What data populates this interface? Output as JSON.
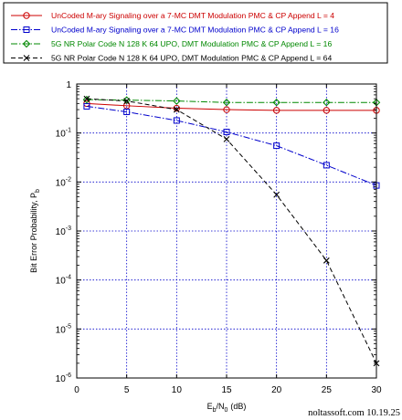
{
  "chart_data": {
    "type": "line",
    "xlabel": "E",
    "xlabel_sub1": "b",
    "xlabel_mid": "/N",
    "xlabel_sub2": "0",
    "xlabel_unit": "(dB)",
    "ylabel": "Bit Error Probability, P",
    "ylabel_sub": "b",
    "xlim": [
      0,
      30
    ],
    "ylim": [
      1e-06,
      1
    ],
    "yscale": "log",
    "grid": true,
    "legend_position": "top",
    "x_ticks": [
      "0",
      "5",
      "10",
      "15",
      "20",
      "25",
      "30"
    ],
    "y_ticks": [
      {
        "base": "1",
        "exp": ""
      },
      {
        "base": "10",
        "exp": "-1"
      },
      {
        "base": "10",
        "exp": "-2"
      },
      {
        "base": "10",
        "exp": "-3"
      },
      {
        "base": "10",
        "exp": "-4"
      },
      {
        "base": "10",
        "exp": "-5"
      },
      {
        "base": "10",
        "exp": "-6"
      }
    ],
    "series": [
      {
        "name": "UnCoded M-ary Signaling over a 7-MC DMT Modulation PMC & CP Append L = 4",
        "color": "#cc0000",
        "marker": "circle",
        "dash": "solid",
        "x": [
          1,
          5,
          10,
          15,
          20,
          25,
          30
        ],
        "y": [
          0.4,
          0.36,
          0.32,
          0.3,
          0.29,
          0.29,
          0.29
        ]
      },
      {
        "name": "UnCoded M-ary Signaling over a 7-MC DMT Modulation PMC & CP Append L = 16",
        "color": "#0000cc",
        "marker": "square",
        "dash": "dashdot",
        "x": [
          1,
          5,
          10,
          15,
          20,
          25,
          30
        ],
        "y": [
          0.35,
          0.27,
          0.18,
          0.105,
          0.055,
          0.022,
          0.0085
        ]
      },
      {
        "name": "5G NR Polar Code N 128 K 64 UPO, DMT Modulation PMC & CP Append L = 16",
        "color": "#008800",
        "marker": "diamond",
        "dash": "dashdot",
        "x": [
          1,
          5,
          10,
          15,
          20,
          25,
          30
        ],
        "y": [
          0.48,
          0.47,
          0.45,
          0.42,
          0.42,
          0.42,
          0.42
        ]
      },
      {
        "name": "5G NR Polar Code N 128 K 64 UPO, DMT Modulation PMC & CP Append L = 64",
        "color": "#000000",
        "marker": "x",
        "dash": "dashed",
        "x": [
          1,
          5,
          10,
          15,
          20,
          25,
          30
        ],
        "y": [
          0.5,
          0.45,
          0.3,
          0.075,
          0.0055,
          0.00025,
          2e-06
        ]
      }
    ]
  },
  "watermark": "noltassoft.com 10.19.25"
}
